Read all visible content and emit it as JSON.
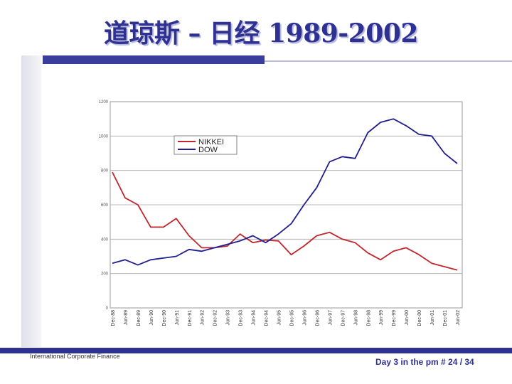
{
  "slide": {
    "title": "道琼斯 – 日经 1989-2002",
    "footer_left": "International Corporate Finance",
    "footer_right": "Day 3 in the pm # 24 / 34"
  },
  "colors": {
    "accent": "#2e3192",
    "nikkei": "#c0272d",
    "dow": "#1f1f8f"
  },
  "chart_data": {
    "type": "line",
    "title": "",
    "xlabel": "",
    "ylabel": "",
    "ylim": [
      0,
      1200
    ],
    "yticks": [
      "0",
      "200",
      "400",
      "600",
      "800",
      "1000",
      "1200"
    ],
    "grid": true,
    "legend": "top-left",
    "categories": [
      "Dec-88",
      "Jun-89",
      "Dec-89",
      "Jun-90",
      "Dec-90",
      "Jun-91",
      "Dec-91",
      "Jun-92",
      "Dec-92",
      "Jun-93",
      "Dec-93",
      "Jun-94",
      "Dec-94",
      "Jun-95",
      "Dec-95",
      "Jun-96",
      "Dec-96",
      "Jun-97",
      "Dec-97",
      "Jun-98",
      "Dec-98",
      "Jun-99",
      "Dec-99",
      "Jun-00",
      "Dec-00",
      "Jun-01",
      "Dec-01",
      "Jun-02"
    ],
    "series": [
      {
        "name": "NIKKEI",
        "color": "#c0272d",
        "values": [
          790,
          640,
          600,
          470,
          470,
          520,
          420,
          350,
          350,
          360,
          430,
          380,
          395,
          390,
          310,
          360,
          420,
          440,
          400,
          380,
          320,
          280,
          330,
          350,
          310,
          260,
          240,
          220
        ]
      },
      {
        "name": "DOW",
        "color": "#1f1f8f",
        "values": [
          260,
          280,
          250,
          280,
          290,
          300,
          340,
          330,
          350,
          370,
          390,
          420,
          380,
          430,
          490,
          600,
          700,
          850,
          880,
          870,
          1020,
          1080,
          1100,
          1060,
          1010,
          1000,
          900,
          840
        ]
      }
    ]
  }
}
